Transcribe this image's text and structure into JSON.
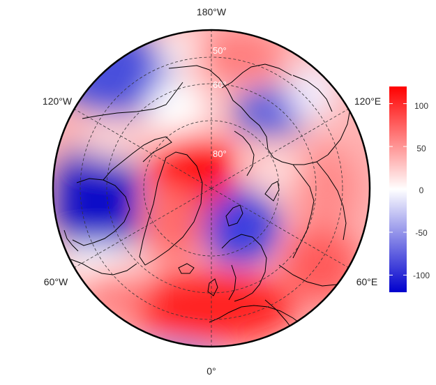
{
  "map": {
    "projection": "north-polar-stereographic",
    "colors": {
      "high": "#ff0000",
      "mid": "#ffffff",
      "low": "#0000cd"
    },
    "lon_labels": {
      "top": "180°W",
      "upper_left": "120°W",
      "upper_right": "120°E",
      "lower_left": "60°W",
      "lower_right": "60°E",
      "bottom": "0°"
    },
    "lat_labels": {
      "outer": "50°",
      "middle": "60°",
      "inner": "80°"
    },
    "colorbar": {
      "min": -120,
      "max": 120,
      "ticks": [
        "100",
        "50",
        "0",
        "-50",
        "-100"
      ]
    }
  }
}
